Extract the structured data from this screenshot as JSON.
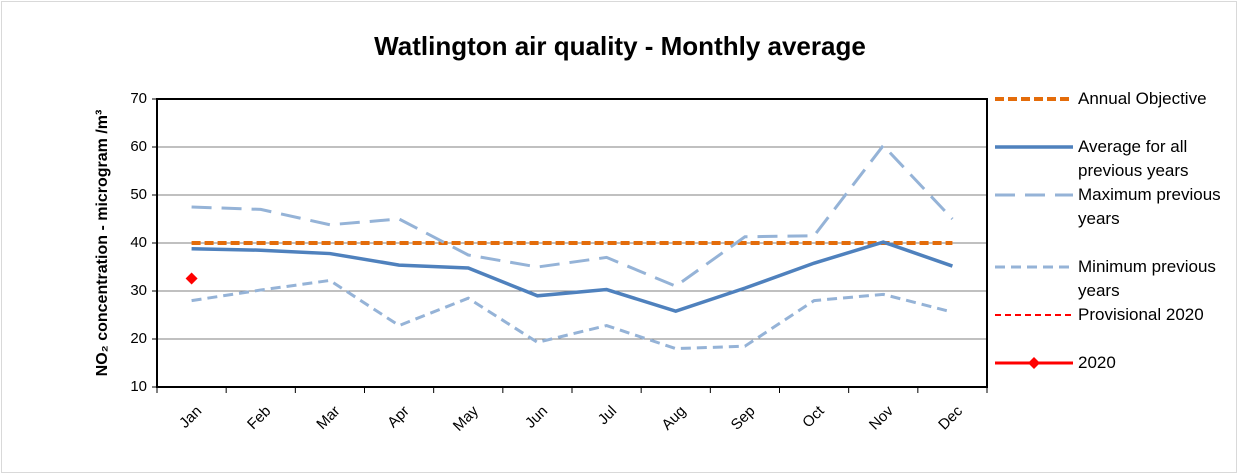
{
  "chart_data": {
    "type": "line",
    "title": "Watlington air quality - Monthly average",
    "y_label": "NO₂ concentration - microgram /m³",
    "categories": [
      "Jan",
      "Feb",
      "Mar",
      "Apr",
      "May",
      "Jun",
      "Jul",
      "Aug",
      "Sep",
      "Oct",
      "Nov",
      "Dec"
    ],
    "ylim": [
      10,
      70
    ],
    "yticks": [
      10,
      20,
      30,
      40,
      50,
      60,
      70
    ],
    "grid": true,
    "legend": "right",
    "series": [
      {
        "name": "Annual Objective",
        "color": "#e46c0a",
        "style": "dashed",
        "values": [
          40,
          40,
          40,
          40,
          40,
          40,
          40,
          40,
          40,
          40,
          40,
          40
        ]
      },
      {
        "name": "Average for all previous years",
        "color": "#4f81bd",
        "style": "solid",
        "values": [
          38.8,
          38.5,
          37.8,
          35.4,
          34.8,
          29,
          30.3,
          25.8,
          30.6,
          35.8,
          40.2,
          35.2
        ]
      },
      {
        "name": "Maximum previous years",
        "color": "#95b3d7",
        "style": "long-dash",
        "values": [
          47.5,
          47,
          43.8,
          45,
          37.5,
          35,
          37,
          31,
          41.3,
          41.5,
          60.3,
          45
        ]
      },
      {
        "name": "Minimum previous years",
        "color": "#95b3d7",
        "style": "short-dash",
        "values": [
          28,
          30.2,
          32.2,
          22.8,
          28.5,
          19.3,
          22.8,
          18,
          18.5,
          28,
          29.3,
          25.6
        ]
      },
      {
        "name": "Provisional 2020",
        "color": "#ff0000",
        "style": "dashed-thin",
        "values": [
          null,
          null,
          null,
          null,
          null,
          null,
          null,
          null,
          null,
          null,
          null,
          null
        ]
      },
      {
        "name": "2020",
        "color": "#ff0000",
        "style": "marker",
        "values": [
          32.6,
          null,
          null,
          null,
          null,
          null,
          null,
          null,
          null,
          null,
          null,
          null
        ]
      }
    ]
  }
}
